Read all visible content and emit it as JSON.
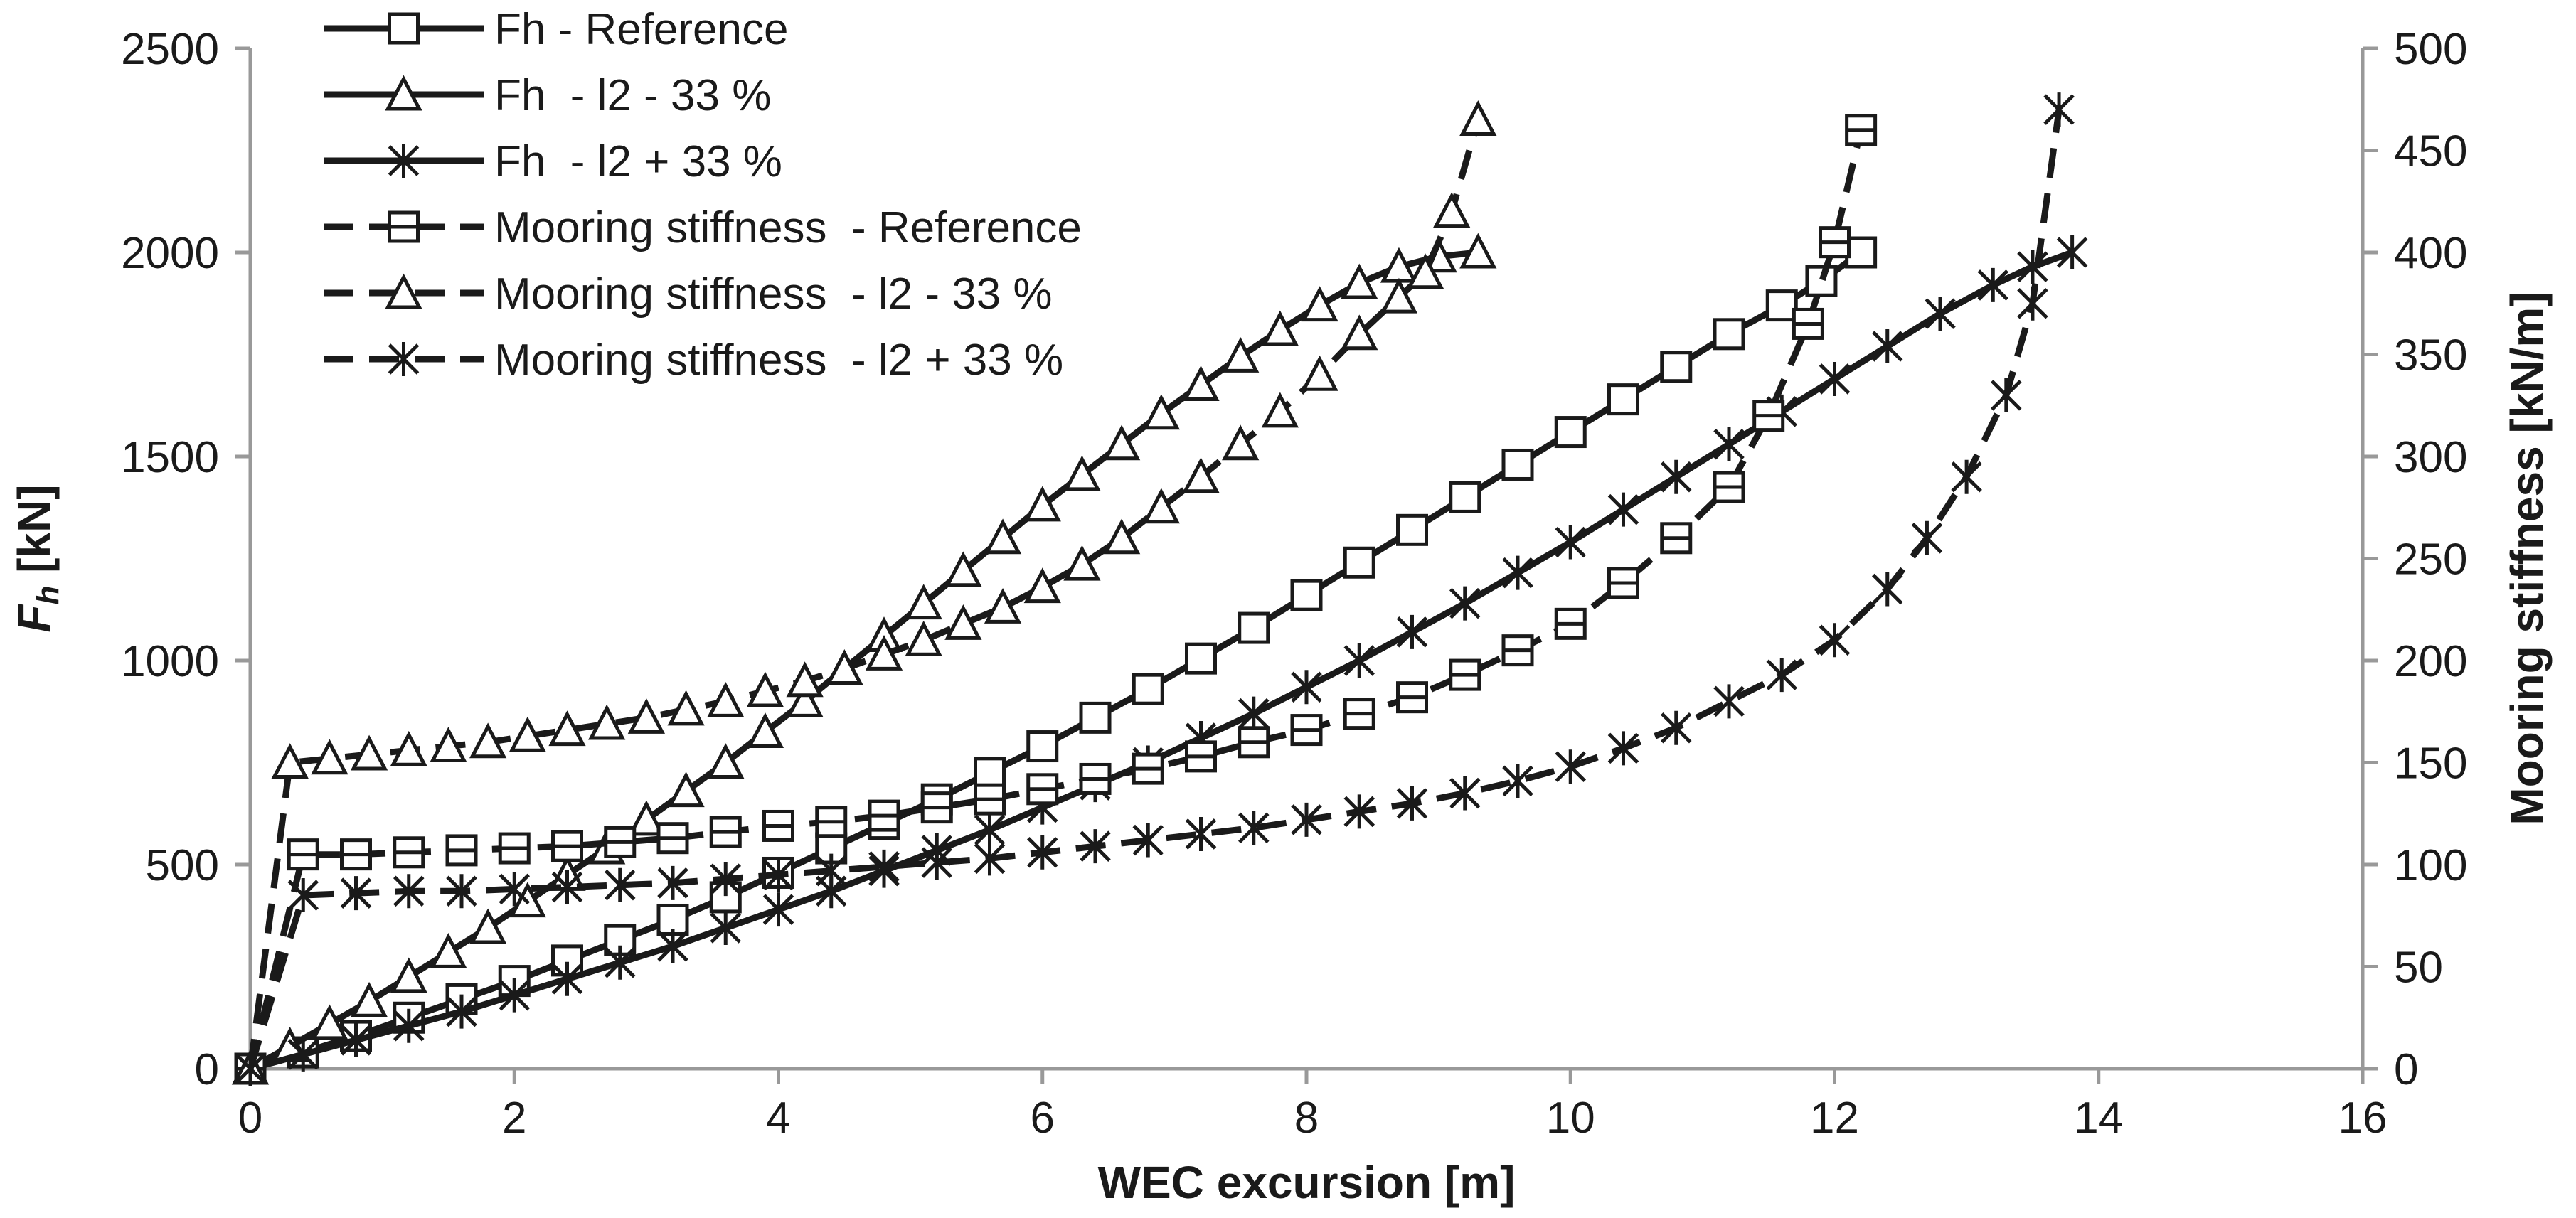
{
  "chart_data": {
    "type": "line",
    "xlabel": "WEC excursion [m]",
    "ylabel_main": "F",
    "ylabel_sub": "h",
    "ylabel_unit": " [kN]",
    "y2label": "Mooring stiffness [kN/m]",
    "xlim": [
      0,
      16
    ],
    "ylim": [
      0,
      2500
    ],
    "y2lim": [
      0,
      500
    ],
    "xticks": [
      "0",
      "2",
      "4",
      "6",
      "8",
      "10",
      "12",
      "14",
      "16"
    ],
    "yticks": [
      "0",
      "500",
      "1000",
      "1500",
      "2000",
      "2500"
    ],
    "y2ticks": [
      "0",
      "50",
      "100",
      "150",
      "200",
      "250",
      "300",
      "350",
      "400",
      "450",
      "500"
    ],
    "grid": false,
    "legend_position": "top-left",
    "series": [
      {
        "name": "Fh - Reference",
        "axis": "left",
        "line": "solid",
        "marker": "square",
        "x": [
          0,
          0.4,
          0.8,
          1.2,
          1.6,
          2.0,
          2.4,
          2.8,
          3.2,
          3.6,
          4.0,
          4.4,
          4.8,
          5.2,
          5.6,
          6.0,
          6.4,
          6.8,
          7.2,
          7.6,
          8.0,
          8.4,
          8.8,
          9.2,
          9.6,
          10.0,
          10.4,
          10.8,
          11.2,
          11.6,
          11.9,
          12.2
        ],
        "y": [
          0,
          40,
          80,
          125,
          170,
          215,
          265,
          315,
          365,
          420,
          480,
          540,
          600,
          660,
          725,
          790,
          860,
          930,
          1005,
          1080,
          1160,
          1240,
          1320,
          1400,
          1480,
          1560,
          1640,
          1720,
          1800,
          1870,
          1930,
          2000
        ]
      },
      {
        "name": "Fh  - l2 - 33 %",
        "axis": "left",
        "line": "solid",
        "marker": "triangle",
        "x": [
          0,
          0.3,
          0.6,
          0.9,
          1.2,
          1.5,
          1.8,
          2.1,
          2.4,
          2.7,
          3.0,
          3.3,
          3.6,
          3.9,
          4.2,
          4.5,
          4.8,
          5.1,
          5.4,
          5.7,
          6.0,
          6.3,
          6.6,
          6.9,
          7.2,
          7.5,
          7.8,
          8.1,
          8.4,
          8.7,
          9.0,
          9.3
        ],
        "y": [
          0,
          55,
          110,
          165,
          225,
          285,
          345,
          410,
          475,
          540,
          610,
          680,
          750,
          825,
          900,
          980,
          1060,
          1140,
          1220,
          1300,
          1380,
          1455,
          1530,
          1605,
          1675,
          1745,
          1810,
          1870,
          1925,
          1965,
          1990,
          2000
        ]
      },
      {
        "name": "Fh  - l2 + 33 %",
        "axis": "left",
        "line": "solid",
        "marker": "star",
        "x": [
          0,
          0.4,
          0.8,
          1.2,
          1.6,
          2.0,
          2.4,
          2.8,
          3.2,
          3.6,
          4.0,
          4.4,
          4.8,
          5.2,
          5.6,
          6.0,
          6.4,
          6.8,
          7.2,
          7.6,
          8.0,
          8.4,
          8.8,
          9.2,
          9.6,
          10.0,
          10.4,
          10.8,
          11.2,
          11.6,
          12.0,
          12.4,
          12.8,
          13.2,
          13.5,
          13.8
        ],
        "y": [
          0,
          35,
          70,
          105,
          140,
          180,
          220,
          260,
          300,
          345,
          390,
          435,
          485,
          535,
          585,
          640,
          695,
          750,
          810,
          870,
          935,
          1000,
          1070,
          1140,
          1215,
          1290,
          1370,
          1450,
          1530,
          1610,
          1690,
          1770,
          1850,
          1920,
          1965,
          2000
        ]
      },
      {
        "name": "Mooring stiffness  - Reference",
        "axis": "right",
        "line": "dashed",
        "marker": "square-h",
        "x": [
          0,
          0.4,
          0.8,
          1.2,
          1.6,
          2.0,
          2.4,
          2.8,
          3.2,
          3.6,
          4.0,
          4.4,
          4.8,
          5.2,
          5.6,
          6.0,
          6.4,
          6.8,
          7.2,
          7.6,
          8.0,
          8.4,
          8.8,
          9.2,
          9.6,
          10.0,
          10.4,
          10.8,
          11.2,
          11.5,
          11.8,
          12.0,
          12.2
        ],
        "y": [
          0,
          105,
          105,
          106,
          107,
          108,
          109,
          111,
          113,
          116,
          119,
          121,
          124,
          128,
          132,
          137,
          142,
          147,
          153,
          160,
          166,
          174,
          182,
          193,
          205,
          218,
          238,
          260,
          285,
          320,
          365,
          405,
          460
        ]
      },
      {
        "name": "Mooring stiffness  - l2 - 33 %",
        "axis": "right",
        "line": "dashed",
        "marker": "triangle",
        "x": [
          0,
          0.3,
          0.6,
          0.9,
          1.2,
          1.5,
          1.8,
          2.1,
          2.4,
          2.7,
          3.0,
          3.3,
          3.6,
          3.9,
          4.2,
          4.5,
          4.8,
          5.1,
          5.4,
          5.7,
          6.0,
          6.3,
          6.6,
          6.9,
          7.2,
          7.5,
          7.8,
          8.1,
          8.4,
          8.7,
          8.9,
          9.1,
          9.3
        ],
        "y": [
          0,
          150,
          152,
          154,
          156,
          158,
          160,
          163,
          166,
          169,
          172,
          176,
          180,
          185,
          190,
          196,
          203,
          210,
          218,
          226,
          236,
          247,
          260,
          275,
          290,
          306,
          322,
          340,
          360,
          378,
          390,
          420,
          465
        ]
      },
      {
        "name": "Mooring stiffness  - l2 + 33 %",
        "axis": "right",
        "line": "dashed",
        "marker": "star",
        "x": [
          0,
          0.4,
          0.8,
          1.2,
          1.6,
          2.0,
          2.4,
          2.8,
          3.2,
          3.6,
          4.0,
          4.4,
          4.8,
          5.2,
          5.6,
          6.0,
          6.4,
          6.8,
          7.2,
          7.6,
          8.0,
          8.4,
          8.8,
          9.2,
          9.6,
          10.0,
          10.4,
          10.8,
          11.2,
          11.6,
          12.0,
          12.4,
          12.7,
          13.0,
          13.3,
          13.5,
          13.7
        ],
        "y": [
          0,
          85,
          86,
          87,
          87,
          88,
          89,
          90,
          91,
          93,
          95,
          97,
          99,
          101,
          103,
          106,
          109,
          112,
          115,
          118,
          122,
          126,
          130,
          135,
          141,
          148,
          157,
          167,
          180,
          193,
          210,
          235,
          260,
          290,
          330,
          375,
          470
        ]
      }
    ]
  }
}
